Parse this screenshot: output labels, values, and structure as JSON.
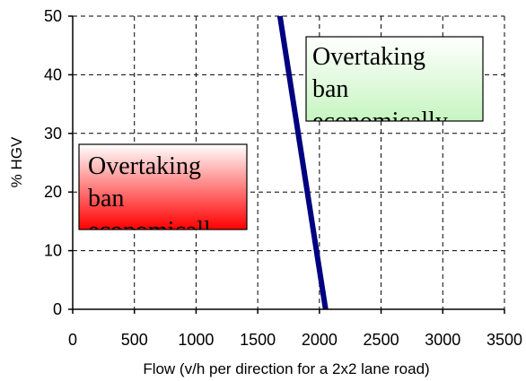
{
  "chart_data": {
    "type": "line",
    "title": "",
    "xlabel": "Flow (v/h per direction for a 2x2 lane road)",
    "ylabel": "% HGV",
    "xlim": [
      0,
      3500
    ],
    "ylim": [
      0,
      50
    ],
    "x_ticks": [
      "0",
      "500",
      "1000",
      "1500",
      "2000",
      "2500",
      "3000",
      "3500"
    ],
    "y_ticks": [
      "0",
      "10",
      "20",
      "30",
      "40",
      "50"
    ],
    "grid": true,
    "series": [
      {
        "x": [
          2050,
          1680
        ],
        "y": [
          0,
          50
        ],
        "color": "#000080"
      }
    ],
    "annotations": [
      {
        "id": "left",
        "lines": [
          "Overtaking",
          "ban",
          "economicall"
        ],
        "gradient": [
          "#ffffff",
          "#ff0000"
        ]
      },
      {
        "id": "right",
        "lines": [
          "Overtaking",
          "ban",
          "economically"
        ],
        "gradient": [
          "#ffffff",
          "#c6f5c0"
        ]
      }
    ]
  }
}
